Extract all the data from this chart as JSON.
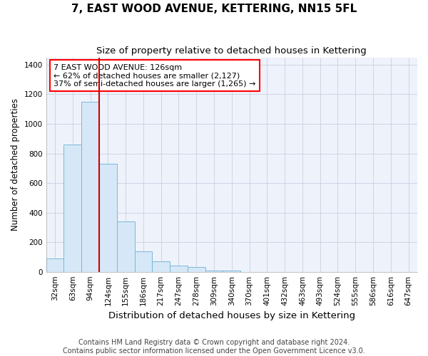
{
  "title": "7, EAST WOOD AVENUE, KETTERING, NN15 5FL",
  "subtitle": "Size of property relative to detached houses in Kettering",
  "xlabel": "Distribution of detached houses by size in Kettering",
  "ylabel": "Number of detached properties",
  "bar_color": "#d6e8f7",
  "bar_edge_color": "#7ab8d9",
  "background_color": "#eef2fb",
  "categories": [
    "32sqm",
    "63sqm",
    "94sqm",
    "124sqm",
    "155sqm",
    "186sqm",
    "217sqm",
    "247sqm",
    "278sqm",
    "309sqm",
    "340sqm",
    "370sqm",
    "401sqm",
    "432sqm",
    "463sqm",
    "493sqm",
    "524sqm",
    "555sqm",
    "586sqm",
    "616sqm",
    "647sqm"
  ],
  "values": [
    90,
    860,
    1150,
    730,
    340,
    140,
    70,
    40,
    30,
    10,
    10,
    0,
    0,
    0,
    0,
    0,
    0,
    0,
    0,
    0,
    0
  ],
  "red_line_after_index": 3,
  "annotation_text": "7 EAST WOOD AVENUE: 126sqm\n← 62% of detached houses are smaller (2,127)\n37% of semi-detached houses are larger (1,265) →",
  "ylim": [
    0,
    1450
  ],
  "yticks": [
    0,
    200,
    400,
    600,
    800,
    1000,
    1200,
    1400
  ],
  "red_line_color": "#cc0000",
  "footer_text": "Contains HM Land Registry data © Crown copyright and database right 2024.\nContains public sector information licensed under the Open Government Licence v3.0.",
  "title_fontsize": 11,
  "subtitle_fontsize": 9.5,
  "xlabel_fontsize": 9.5,
  "ylabel_fontsize": 8.5,
  "tick_fontsize": 7.5,
  "annotation_fontsize": 8,
  "footer_fontsize": 7
}
